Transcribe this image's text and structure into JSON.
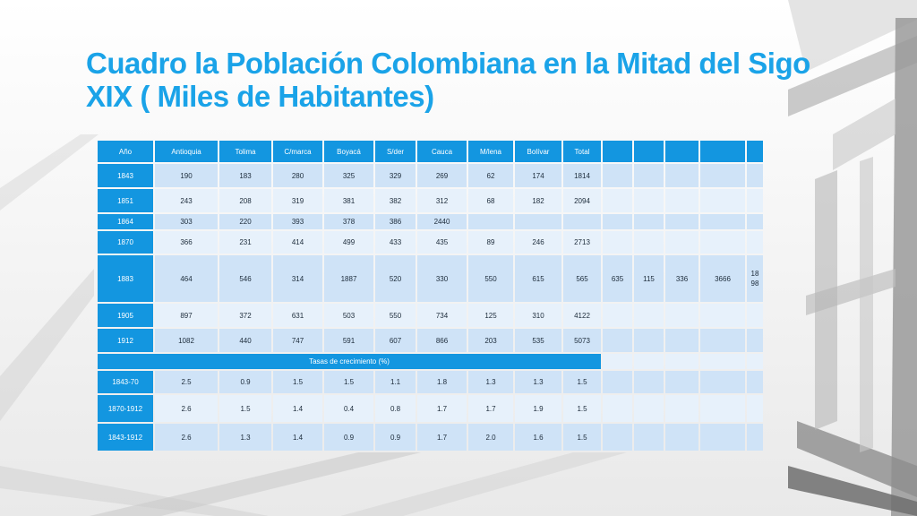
{
  "slide": {
    "title": "Cuadro la Población Colombiana en la Mitad del Sigo XIX ( Miles de Habitantes)"
  },
  "table": {
    "headers": [
      "Año",
      "Antioquia",
      "Tolima",
      "C/marca",
      "Boyacá",
      "S/der",
      "Cauca",
      "M/lena",
      "Bolívar",
      "Total",
      "",
      "",
      "",
      "",
      ""
    ],
    "rows": [
      [
        "1843",
        "190",
        "183",
        "280",
        "325",
        "329",
        "269",
        "62",
        "174",
        "1814",
        "",
        "",
        "",
        "",
        ""
      ],
      [
        "1851",
        "243",
        "208",
        "319",
        "381",
        "382",
        "312",
        "68",
        "182",
        "2094",
        "",
        "",
        "",
        "",
        ""
      ],
      [
        "1864",
        "303",
        "220",
        "393",
        "378",
        "386",
        "2440",
        "",
        "",
        "",
        "",
        "",
        "",
        "",
        ""
      ],
      [
        "1870",
        "366",
        "231",
        "414",
        "499",
        "433",
        "435",
        "89",
        "246",
        "2713",
        "",
        "",
        "",
        "",
        ""
      ],
      [
        "1883",
        "464",
        "546",
        "314",
        "1887",
        "520",
        "330",
        "550",
        "615",
        "565",
        "635",
        "115",
        "336",
        "3666",
        "18\n98"
      ],
      [
        "1905",
        "897",
        "372",
        "631",
        "503",
        "550",
        "734",
        "125",
        "310",
        "4122",
        "",
        "",
        "",
        "",
        ""
      ],
      [
        "1912",
        "1082",
        "440",
        "747",
        "591",
        "607",
        "866",
        "203",
        "535",
        "5073",
        "",
        "",
        "",
        "",
        ""
      ]
    ],
    "growth_title": "Tasas de crecimiento (%)",
    "growth_rows": [
      [
        "1843-70",
        "2.5",
        "0.9",
        "1.5",
        "1.5",
        "1.1",
        "1.8",
        "1.3",
        "1.3",
        "1.5",
        "",
        "",
        "",
        "",
        ""
      ],
      [
        "1870-1912",
        "2.6",
        "1.5",
        "1.4",
        "0.4",
        "0.8",
        "1.7",
        "1.7",
        "1.9",
        "1.5",
        "",
        "",
        "",
        "",
        ""
      ],
      [
        "1843-1912",
        "2.6",
        "1.3",
        "1.4",
        "0.9",
        "0.9",
        "1.7",
        "2.0",
        "1.6",
        "1.5",
        "",
        "",
        "",
        "",
        ""
      ]
    ]
  }
}
